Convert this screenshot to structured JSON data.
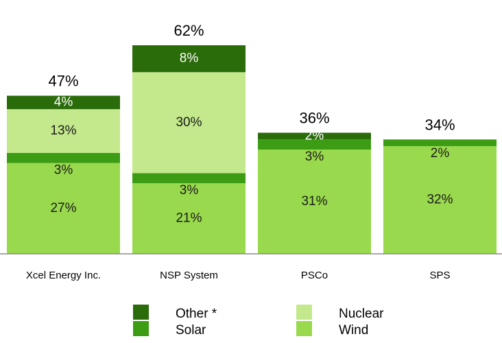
{
  "chart_data": {
    "type": "bar",
    "stacked": true,
    "categories": [
      "Xcel Energy Inc.",
      "NSP System",
      "PSCo",
      "SPS"
    ],
    "series": [
      {
        "name": "Wind",
        "color": "#99d94d",
        "values": [
          27,
          21,
          31,
          32
        ],
        "labels": [
          "27%",
          "21%",
          "31%",
          "32%"
        ]
      },
      {
        "name": "Solar",
        "color": "#3c9c14",
        "values": [
          3,
          3,
          3,
          2
        ],
        "labels": [
          "3%",
          "3%",
          "3%",
          "2%"
        ]
      },
      {
        "name": "Nuclear",
        "color": "#c4e88c",
        "values": [
          13,
          30,
          0,
          0
        ],
        "labels": [
          "13%",
          "30%",
          "",
          ""
        ]
      },
      {
        "name": "Other *",
        "color": "#2a6b0a",
        "values": [
          4,
          8,
          2,
          0
        ],
        "labels": [
          "4%",
          "8%",
          "2%",
          ""
        ]
      }
    ],
    "totals": [
      "47%",
      "62%",
      "36%",
      "34%"
    ],
    "ylim": [
      0,
      62
    ],
    "legend_position": "bottom",
    "legend_order": [
      "Other *",
      "Nuclear",
      "Solar",
      "Wind"
    ],
    "grid": false
  }
}
